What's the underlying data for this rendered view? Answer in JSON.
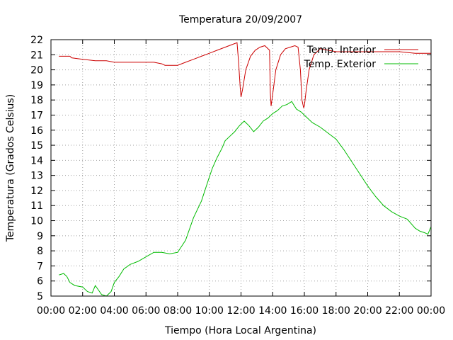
{
  "chart_data": {
    "type": "line",
    "title": "Temperatura 20/09/2007",
    "xlabel": "Tiempo (Hora Local Argentina)",
    "ylabel": "Temperatura (Grados Celsius)",
    "xlim": [
      0,
      24
    ],
    "ylim": [
      5,
      22
    ],
    "grid": true,
    "legend_position": "top-right",
    "x_ticks": [
      "00:00",
      "02:00",
      "04:00",
      "06:00",
      "08:00",
      "10:00",
      "12:00",
      "14:00",
      "16:00",
      "18:00",
      "20:00",
      "22:00",
      "00:00"
    ],
    "y_ticks": [
      "5",
      "6",
      "7",
      "8",
      "9",
      "10",
      "11",
      "12",
      "13",
      "14",
      "15",
      "16",
      "17",
      "18",
      "19",
      "20",
      "21",
      "22"
    ],
    "series": [
      {
        "name": "Temp. Interior",
        "color": "#cc0000",
        "x": [
          0.5,
          1.2,
          1.3,
          2.0,
          2.8,
          3.5,
          4.0,
          4.5,
          5.0,
          5.5,
          6.0,
          6.5,
          7.0,
          7.2,
          8.0,
          8.5,
          9.0,
          9.5,
          10.0,
          10.5,
          11.0,
          11.5,
          11.75,
          11.85,
          11.95,
          12.0,
          12.1,
          12.3,
          12.6,
          12.9,
          13.2,
          13.5,
          13.8,
          13.85,
          13.9,
          14.0,
          14.2,
          14.5,
          14.8,
          15.1,
          15.4,
          15.6,
          15.75,
          15.85,
          15.95,
          16.0,
          16.1,
          16.3,
          16.6,
          17.0,
          17.5,
          18.0,
          19.0,
          20.0,
          21.0,
          22.0,
          23.0,
          24.0
        ],
        "y": [
          20.9,
          20.9,
          20.8,
          20.7,
          20.6,
          20.6,
          20.5,
          20.5,
          20.5,
          20.5,
          20.5,
          20.5,
          20.4,
          20.3,
          20.3,
          20.5,
          20.7,
          20.9,
          21.1,
          21.3,
          21.5,
          21.7,
          21.8,
          20.5,
          18.8,
          18.2,
          18.7,
          20.0,
          20.9,
          21.3,
          21.5,
          21.6,
          21.3,
          18.5,
          17.6,
          18.4,
          20.0,
          21.0,
          21.4,
          21.5,
          21.6,
          21.5,
          20.0,
          18.0,
          17.5,
          17.6,
          18.5,
          20.0,
          21.0,
          21.4,
          21.3,
          21.2,
          21.2,
          21.2,
          21.2,
          21.2,
          21.1,
          21.1
        ]
      },
      {
        "name": "Temp. Exterior",
        "color": "#00bb00",
        "x": [
          0.5,
          0.8,
          1.0,
          1.2,
          1.5,
          2.0,
          2.3,
          2.6,
          2.8,
          3.0,
          3.2,
          3.5,
          3.8,
          4.0,
          4.3,
          4.6,
          5.0,
          5.5,
          6.0,
          6.5,
          7.0,
          7.5,
          8.0,
          8.5,
          9.0,
          9.5,
          10.0,
          10.2,
          10.5,
          10.8,
          11.0,
          11.3,
          11.6,
          11.9,
          12.2,
          12.5,
          12.8,
          13.1,
          13.4,
          13.7,
          14.0,
          14.3,
          14.6,
          14.9,
          15.2,
          15.5,
          15.8,
          16.1,
          16.5,
          17.0,
          17.5,
          18.0,
          18.5,
          19.0,
          19.5,
          20.0,
          20.5,
          21.0,
          21.5,
          22.0,
          22.5,
          23.0,
          23.3,
          23.6,
          23.8,
          24.0
        ],
        "y": [
          6.4,
          6.5,
          6.3,
          5.9,
          5.7,
          5.6,
          5.3,
          5.2,
          5.7,
          5.4,
          5.1,
          5.0,
          5.3,
          5.9,
          6.3,
          6.8,
          7.1,
          7.3,
          7.6,
          7.9,
          7.9,
          7.8,
          7.9,
          8.7,
          10.2,
          11.3,
          12.9,
          13.5,
          14.2,
          14.8,
          15.3,
          15.6,
          15.9,
          16.3,
          16.6,
          16.3,
          15.9,
          16.2,
          16.6,
          16.8,
          17.1,
          17.3,
          17.6,
          17.7,
          17.9,
          17.4,
          17.2,
          16.9,
          16.5,
          16.2,
          15.8,
          15.4,
          14.7,
          13.9,
          13.1,
          12.3,
          11.6,
          11.0,
          10.6,
          10.3,
          10.1,
          9.5,
          9.3,
          9.2,
          9.1,
          9.6
        ]
      }
    ]
  }
}
